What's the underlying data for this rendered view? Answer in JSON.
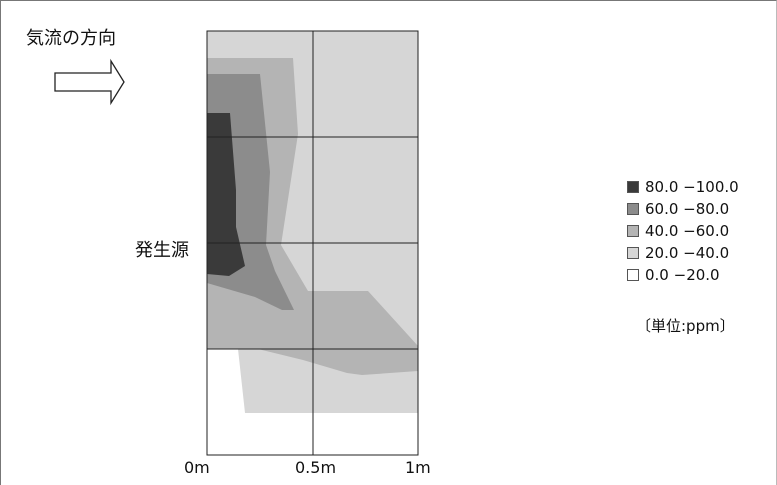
{
  "flow_label": "気流の方向",
  "source_label": "発生源",
  "units_label": "〔単位:ppm〕",
  "colors": {
    "band_80_100": "#3a3a3a",
    "band_60_80": "#8c8c8c",
    "band_40_60": "#b4b4b4",
    "band_20_40": "#d6d6d6",
    "band_0_20": "#ffffff",
    "grid": "#222222"
  },
  "chart_data": {
    "type": "contour",
    "x_ticks": [
      "0m",
      "0.5m",
      "1m"
    ],
    "xlim": [
      0,
      1
    ],
    "bands": [
      {
        "label": "80.0 −100.0",
        "min": 80,
        "max": 100,
        "color": "#3a3a3a"
      },
      {
        "label": "60.0 −80.0",
        "min": 60,
        "max": 80,
        "color": "#8c8c8c"
      },
      {
        "label": "40.0 −60.0",
        "min": 40,
        "max": 60,
        "color": "#b4b4b4"
      },
      {
        "label": "20.0 −40.0",
        "min": 20,
        "max": 40,
        "color": "#d6d6d6"
      },
      {
        "label": "0.0 −20.0",
        "min": 0,
        "max": 20,
        "color": "#ffffff"
      }
    ],
    "legend_position": "right"
  }
}
